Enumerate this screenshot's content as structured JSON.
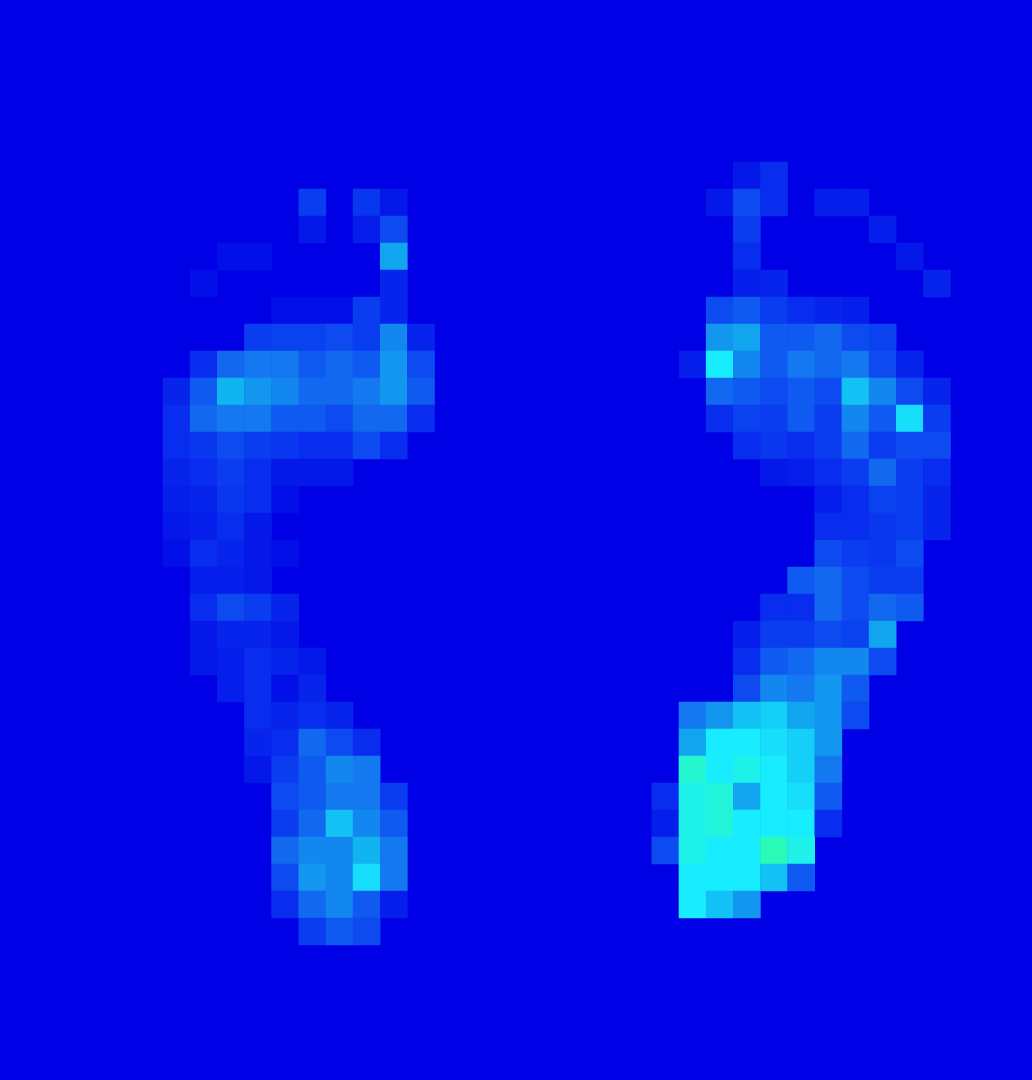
{
  "chart_data": {
    "type": "heatmap",
    "tick_labels": false,
    "grid": false,
    "value_range": [
      0,
      100
    ],
    "cells": [
      [
        11,
        7,
        20
      ],
      [
        13,
        7,
        18
      ],
      [
        14,
        7,
        8
      ],
      [
        11,
        8,
        8
      ],
      [
        13,
        8,
        10
      ],
      [
        14,
        8,
        25
      ],
      [
        8,
        9,
        5
      ],
      [
        9,
        9,
        5
      ],
      [
        14,
        9,
        55
      ],
      [
        7,
        10,
        5
      ],
      [
        14,
        10,
        12
      ],
      [
        10,
        11,
        5
      ],
      [
        11,
        11,
        5
      ],
      [
        12,
        11,
        5
      ],
      [
        13,
        11,
        20
      ],
      [
        14,
        11,
        12
      ],
      [
        9,
        12,
        20
      ],
      [
        10,
        12,
        22
      ],
      [
        11,
        12,
        22
      ],
      [
        12,
        12,
        25
      ],
      [
        13,
        12,
        20
      ],
      [
        14,
        12,
        45
      ],
      [
        15,
        12,
        12
      ],
      [
        7,
        13,
        15
      ],
      [
        8,
        13,
        35
      ],
      [
        9,
        13,
        40
      ],
      [
        10,
        13,
        40
      ],
      [
        11,
        13,
        30
      ],
      [
        12,
        13,
        35
      ],
      [
        13,
        13,
        30
      ],
      [
        14,
        13,
        50
      ],
      [
        15,
        13,
        25
      ],
      [
        6,
        14,
        12
      ],
      [
        7,
        14,
        30
      ],
      [
        8,
        14,
        60
      ],
      [
        9,
        14,
        50
      ],
      [
        10,
        14,
        45
      ],
      [
        11,
        14,
        35
      ],
      [
        12,
        14,
        35
      ],
      [
        13,
        14,
        40
      ],
      [
        14,
        14,
        50
      ],
      [
        15,
        14,
        30
      ],
      [
        6,
        15,
        15
      ],
      [
        7,
        15,
        35
      ],
      [
        8,
        15,
        40
      ],
      [
        9,
        15,
        40
      ],
      [
        10,
        15,
        30
      ],
      [
        11,
        15,
        30
      ],
      [
        12,
        15,
        25
      ],
      [
        13,
        15,
        35
      ],
      [
        14,
        15,
        35
      ],
      [
        15,
        15,
        15
      ],
      [
        6,
        16,
        15
      ],
      [
        7,
        16,
        18
      ],
      [
        8,
        16,
        25
      ],
      [
        9,
        16,
        20
      ],
      [
        10,
        16,
        18
      ],
      [
        11,
        16,
        15
      ],
      [
        12,
        16,
        15
      ],
      [
        13,
        16,
        25
      ],
      [
        14,
        16,
        15
      ],
      [
        6,
        17,
        12
      ],
      [
        7,
        17,
        15
      ],
      [
        8,
        17,
        20
      ],
      [
        9,
        17,
        15
      ],
      [
        10,
        17,
        8
      ],
      [
        11,
        17,
        8
      ],
      [
        12,
        17,
        8
      ],
      [
        6,
        18,
        10
      ],
      [
        7,
        18,
        12
      ],
      [
        8,
        18,
        18
      ],
      [
        9,
        18,
        15
      ],
      [
        10,
        18,
        5
      ],
      [
        6,
        19,
        8
      ],
      [
        7,
        19,
        10
      ],
      [
        8,
        19,
        15
      ],
      [
        9,
        19,
        8
      ],
      [
        6,
        20,
        5
      ],
      [
        7,
        20,
        15
      ],
      [
        8,
        20,
        12
      ],
      [
        9,
        20,
        8
      ],
      [
        10,
        20,
        5
      ],
      [
        7,
        21,
        10
      ],
      [
        8,
        21,
        10
      ],
      [
        9,
        21,
        8
      ],
      [
        7,
        22,
        15
      ],
      [
        8,
        22,
        25
      ],
      [
        9,
        22,
        20
      ],
      [
        10,
        22,
        12
      ],
      [
        7,
        23,
        8
      ],
      [
        8,
        23,
        12
      ],
      [
        9,
        23,
        12
      ],
      [
        10,
        23,
        8
      ],
      [
        7,
        24,
        8
      ],
      [
        8,
        24,
        10
      ],
      [
        9,
        24,
        15
      ],
      [
        10,
        24,
        12
      ],
      [
        11,
        24,
        8
      ],
      [
        8,
        25,
        10
      ],
      [
        9,
        25,
        15
      ],
      [
        10,
        25,
        5
      ],
      [
        11,
        25,
        12
      ],
      [
        9,
        26,
        15
      ],
      [
        10,
        26,
        12
      ],
      [
        11,
        26,
        15
      ],
      [
        12,
        26,
        12
      ],
      [
        9,
        27,
        12
      ],
      [
        10,
        27,
        15
      ],
      [
        11,
        27,
        35
      ],
      [
        12,
        27,
        25
      ],
      [
        13,
        27,
        15
      ],
      [
        9,
        28,
        8
      ],
      [
        10,
        28,
        20
      ],
      [
        11,
        28,
        30
      ],
      [
        12,
        28,
        45
      ],
      [
        13,
        28,
        40
      ],
      [
        10,
        29,
        25
      ],
      [
        11,
        29,
        30
      ],
      [
        12,
        29,
        40
      ],
      [
        13,
        29,
        40
      ],
      [
        14,
        29,
        20
      ],
      [
        10,
        30,
        20
      ],
      [
        11,
        30,
        35
      ],
      [
        12,
        30,
        65
      ],
      [
        13,
        30,
        45
      ],
      [
        14,
        30,
        30
      ],
      [
        10,
        31,
        35
      ],
      [
        11,
        31,
        45
      ],
      [
        12,
        31,
        45
      ],
      [
        13,
        31,
        60
      ],
      [
        14,
        31,
        40
      ],
      [
        10,
        32,
        25
      ],
      [
        11,
        32,
        50
      ],
      [
        12,
        32,
        45
      ],
      [
        13,
        32,
        75
      ],
      [
        14,
        32,
        40
      ],
      [
        10,
        33,
        15
      ],
      [
        11,
        33,
        35
      ],
      [
        12,
        33,
        45
      ],
      [
        13,
        33,
        30
      ],
      [
        14,
        33,
        10
      ],
      [
        11,
        34,
        20
      ],
      [
        12,
        34,
        30
      ],
      [
        13,
        34,
        25
      ],
      [
        27,
        6,
        8
      ],
      [
        28,
        6,
        15
      ],
      [
        26,
        7,
        8
      ],
      [
        27,
        7,
        25
      ],
      [
        28,
        7,
        15
      ],
      [
        30,
        7,
        10
      ],
      [
        31,
        7,
        10
      ],
      [
        27,
        8,
        20
      ],
      [
        32,
        8,
        10
      ],
      [
        27,
        9,
        15
      ],
      [
        33,
        9,
        8
      ],
      [
        27,
        10,
        10
      ],
      [
        28,
        10,
        12
      ],
      [
        34,
        10,
        12
      ],
      [
        26,
        11,
        25
      ],
      [
        27,
        11,
        30
      ],
      [
        28,
        11,
        20
      ],
      [
        29,
        11,
        15
      ],
      [
        30,
        11,
        12
      ],
      [
        31,
        11,
        10
      ],
      [
        26,
        12,
        50
      ],
      [
        27,
        12,
        55
      ],
      [
        28,
        12,
        30
      ],
      [
        29,
        12,
        30
      ],
      [
        30,
        12,
        35
      ],
      [
        31,
        12,
        25
      ],
      [
        32,
        12,
        22
      ],
      [
        25,
        13,
        10
      ],
      [
        26,
        13,
        80
      ],
      [
        27,
        13,
        45
      ],
      [
        28,
        13,
        30
      ],
      [
        29,
        13,
        40
      ],
      [
        30,
        13,
        35
      ],
      [
        31,
        13,
        40
      ],
      [
        32,
        13,
        25
      ],
      [
        33,
        13,
        12
      ],
      [
        26,
        14,
        35
      ],
      [
        27,
        14,
        30
      ],
      [
        28,
        14,
        25
      ],
      [
        29,
        14,
        30
      ],
      [
        30,
        14,
        25
      ],
      [
        31,
        14,
        65
      ],
      [
        32,
        14,
        45
      ],
      [
        33,
        14,
        25
      ],
      [
        34,
        14,
        12
      ],
      [
        26,
        15,
        15
      ],
      [
        27,
        15,
        22
      ],
      [
        28,
        15,
        20
      ],
      [
        29,
        15,
        30
      ],
      [
        30,
        15,
        20
      ],
      [
        31,
        15,
        45
      ],
      [
        32,
        15,
        30
      ],
      [
        33,
        15,
        75
      ],
      [
        34,
        15,
        20
      ],
      [
        27,
        16,
        15
      ],
      [
        28,
        16,
        18
      ],
      [
        29,
        16,
        15
      ],
      [
        30,
        16,
        20
      ],
      [
        31,
        16,
        35
      ],
      [
        32,
        16,
        20
      ],
      [
        33,
        16,
        25
      ],
      [
        34,
        16,
        25
      ],
      [
        28,
        17,
        8
      ],
      [
        29,
        17,
        10
      ],
      [
        30,
        17,
        15
      ],
      [
        31,
        17,
        20
      ],
      [
        32,
        17,
        35
      ],
      [
        33,
        17,
        20
      ],
      [
        34,
        17,
        15
      ],
      [
        30,
        18,
        10
      ],
      [
        31,
        18,
        15
      ],
      [
        32,
        18,
        22
      ],
      [
        33,
        18,
        20
      ],
      [
        34,
        18,
        12
      ],
      [
        30,
        19,
        15
      ],
      [
        31,
        19,
        15
      ],
      [
        32,
        19,
        18
      ],
      [
        33,
        19,
        20
      ],
      [
        34,
        19,
        12
      ],
      [
        30,
        20,
        25
      ],
      [
        31,
        20,
        20
      ],
      [
        32,
        20,
        18
      ],
      [
        33,
        20,
        25
      ],
      [
        29,
        21,
        30
      ],
      [
        30,
        21,
        35
      ],
      [
        31,
        21,
        25
      ],
      [
        32,
        21,
        20
      ],
      [
        33,
        21,
        20
      ],
      [
        28,
        22,
        15
      ],
      [
        29,
        22,
        15
      ],
      [
        30,
        22,
        35
      ],
      [
        31,
        22,
        25
      ],
      [
        32,
        22,
        35
      ],
      [
        33,
        22,
        30
      ],
      [
        27,
        23,
        10
      ],
      [
        28,
        23,
        20
      ],
      [
        29,
        23,
        20
      ],
      [
        30,
        23,
        25
      ],
      [
        31,
        23,
        22
      ],
      [
        32,
        23,
        55
      ],
      [
        27,
        24,
        15
      ],
      [
        28,
        24,
        30
      ],
      [
        29,
        24,
        35
      ],
      [
        30,
        24,
        45
      ],
      [
        31,
        24,
        45
      ],
      [
        32,
        24,
        25
      ],
      [
        27,
        25,
        25
      ],
      [
        28,
        25,
        45
      ],
      [
        29,
        25,
        40
      ],
      [
        30,
        25,
        50
      ],
      [
        31,
        25,
        30
      ],
      [
        25,
        26,
        40
      ],
      [
        26,
        26,
        50
      ],
      [
        27,
        26,
        65
      ],
      [
        28,
        26,
        70
      ],
      [
        29,
        26,
        55
      ],
      [
        30,
        26,
        50
      ],
      [
        31,
        26,
        25
      ],
      [
        25,
        27,
        55
      ],
      [
        26,
        27,
        80
      ],
      [
        27,
        27,
        80
      ],
      [
        28,
        27,
        75
      ],
      [
        29,
        27,
        70
      ],
      [
        30,
        27,
        50
      ],
      [
        25,
        28,
        90
      ],
      [
        26,
        28,
        80
      ],
      [
        27,
        28,
        85
      ],
      [
        28,
        28,
        80
      ],
      [
        29,
        28,
        70
      ],
      [
        30,
        28,
        40
      ],
      [
        24,
        29,
        15
      ],
      [
        25,
        29,
        85
      ],
      [
        26,
        29,
        88
      ],
      [
        27,
        29,
        55
      ],
      [
        28,
        29,
        80
      ],
      [
        29,
        29,
        75
      ],
      [
        30,
        29,
        30
      ],
      [
        24,
        30,
        10
      ],
      [
        25,
        30,
        85
      ],
      [
        26,
        30,
        88
      ],
      [
        27,
        30,
        80
      ],
      [
        28,
        30,
        80
      ],
      [
        29,
        30,
        80
      ],
      [
        30,
        30,
        15
      ],
      [
        24,
        31,
        25
      ],
      [
        25,
        31,
        85
      ],
      [
        26,
        31,
        80
      ],
      [
        27,
        31,
        80
      ],
      [
        28,
        31,
        95
      ],
      [
        29,
        31,
        85
      ],
      [
        25,
        32,
        80
      ],
      [
        26,
        32,
        80
      ],
      [
        27,
        32,
        80
      ],
      [
        28,
        32,
        65
      ],
      [
        29,
        32,
        30
      ],
      [
        25,
        33,
        80
      ],
      [
        26,
        33,
        65
      ],
      [
        27,
        33,
        50
      ]
    ]
  }
}
